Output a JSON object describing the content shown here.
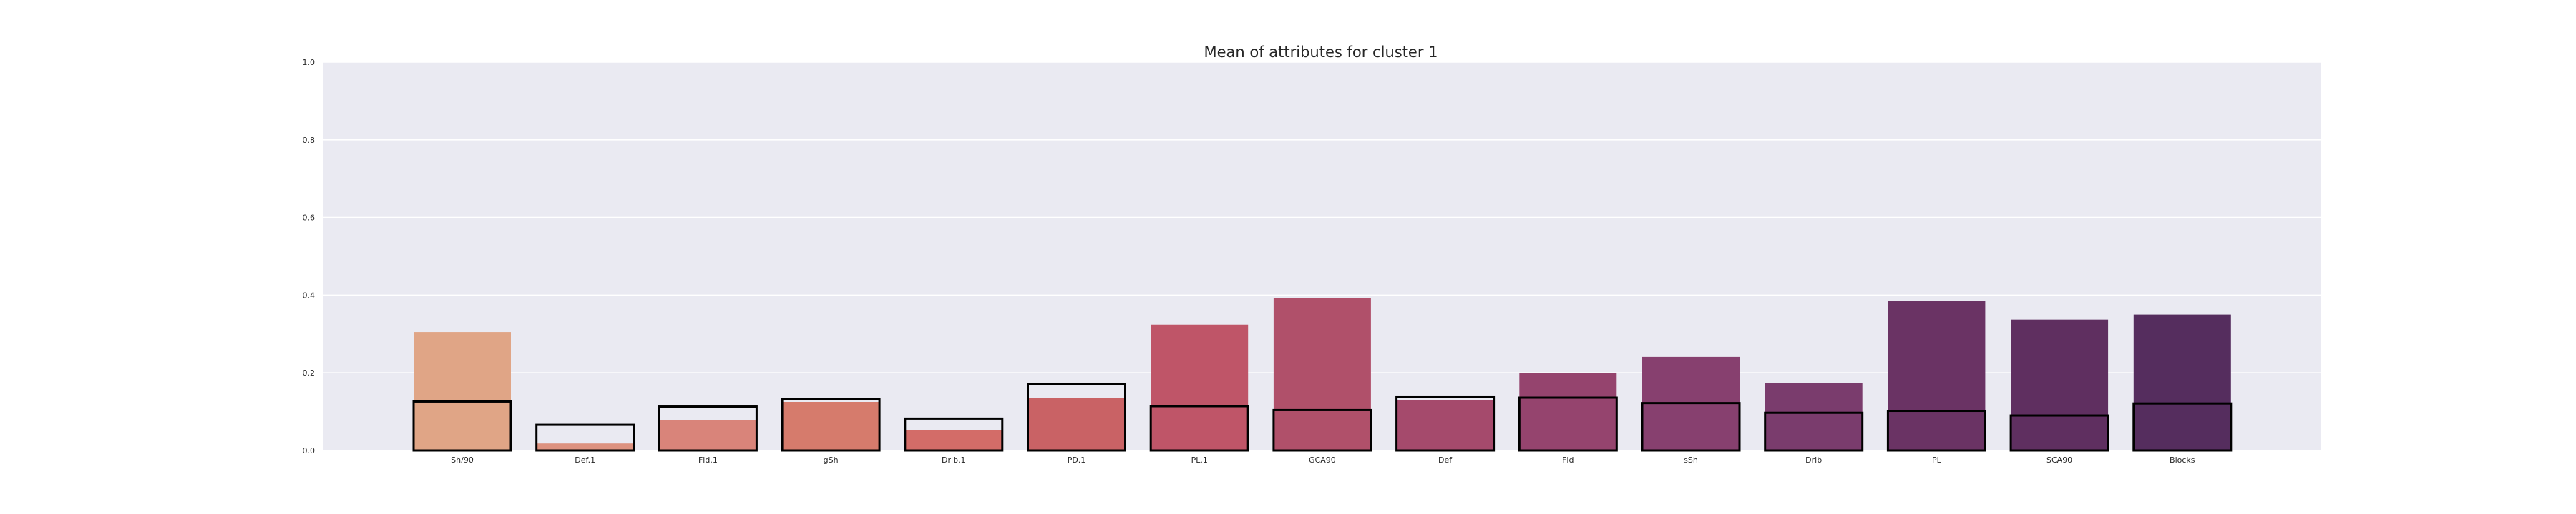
{
  "chart_data": {
    "type": "bar",
    "title": "Mean of attributes for cluster 1",
    "xlabel": "",
    "ylabel": "",
    "ylim": [
      0,
      1
    ],
    "yticks": [
      "0.0",
      "0.2",
      "0.4",
      "0.6",
      "0.8",
      "1.0"
    ],
    "grid": true,
    "legend": "none",
    "categories": [
      "Sh/90",
      "Def.1",
      "Fld.1",
      "gSh",
      "Drib.1",
      "PD.1",
      "PL.1",
      "GCA90",
      "Def",
      "Fld",
      "sSh",
      "Drib",
      "PL",
      "SCA90",
      "Blocks"
    ],
    "series": [
      {
        "style": "filled",
        "values": [
          0.305,
          0.018,
          0.078,
          0.125,
          0.053,
          0.136,
          0.324,
          0.393,
          0.13,
          0.2,
          0.241,
          0.174,
          0.386,
          0.337,
          0.35
        ]
      },
      {
        "style": "outline",
        "values": [
          0.126,
          0.066,
          0.113,
          0.132,
          0.082,
          0.171,
          0.114,
          0.104,
          0.137,
          0.136,
          0.122,
          0.097,
          0.102,
          0.09,
          0.121
        ]
      }
    ],
    "colors": [
      "#e0a586",
      "#dd9280",
      "#d9847a",
      "#d67b6c",
      "#d36c68",
      "#c96265",
      "#bf5568",
      "#b0506a",
      "#a54a6c",
      "#95446e",
      "#87406f",
      "#7a3c6d",
      "#6a3364",
      "#5f2f60",
      "#552d5e"
    ],
    "plot_background": "#eaeaf2",
    "outline_color": "#000000"
  }
}
